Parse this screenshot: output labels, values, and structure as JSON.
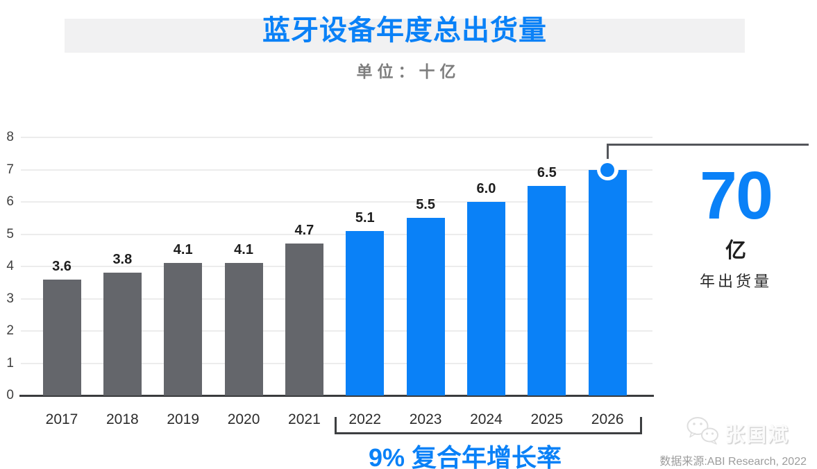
{
  "header": {
    "title": "蓝牙设备年度总出货量",
    "subtitle": "单位：十亿"
  },
  "theme": {
    "accent_blue": "#0a81f7",
    "bar_gray": "#64666b",
    "grid_color": "#ececec",
    "axis_color": "#3a3c3e",
    "callout_line_color": "#53555a"
  },
  "chart_data": {
    "type": "bar",
    "title": "蓝牙设备年度总出货量",
    "unit_label": "单位：十亿",
    "categories": [
      "2017",
      "2018",
      "2019",
      "2020",
      "2021",
      "2022",
      "2023",
      "2024",
      "2025",
      "2026"
    ],
    "values": [
      3.6,
      3.8,
      4.1,
      4.1,
      4.7,
      5.1,
      5.5,
      6.0,
      6.5,
      7.0
    ],
    "value_labels": [
      "3.6",
      "3.8",
      "4.1",
      "4.1",
      "4.7",
      "5.1",
      "5.5",
      "6.0",
      "6.5",
      null
    ],
    "forecast_start_index": 5,
    "bar_colors": {
      "historical": "#64666b",
      "forecast": "#0a81f7"
    },
    "ylim": [
      0,
      8
    ],
    "yticks": [
      0,
      1,
      2,
      3,
      4,
      5,
      6,
      7,
      8
    ],
    "grid": true,
    "legend": "none",
    "highlight": {
      "category": "2026",
      "marker": "circle-on-bar-top",
      "value": 7.0
    }
  },
  "callout": {
    "value": "70",
    "unit": "亿",
    "caption": "年出货量"
  },
  "cagr": {
    "rate": "9%",
    "label": "复合年增长率",
    "span": [
      "2022",
      "2026"
    ]
  },
  "watermark": {
    "name": "张国斌",
    "icon": "wechat-icon"
  },
  "footer": {
    "source": "数据来源:ABI Research, 2022"
  }
}
